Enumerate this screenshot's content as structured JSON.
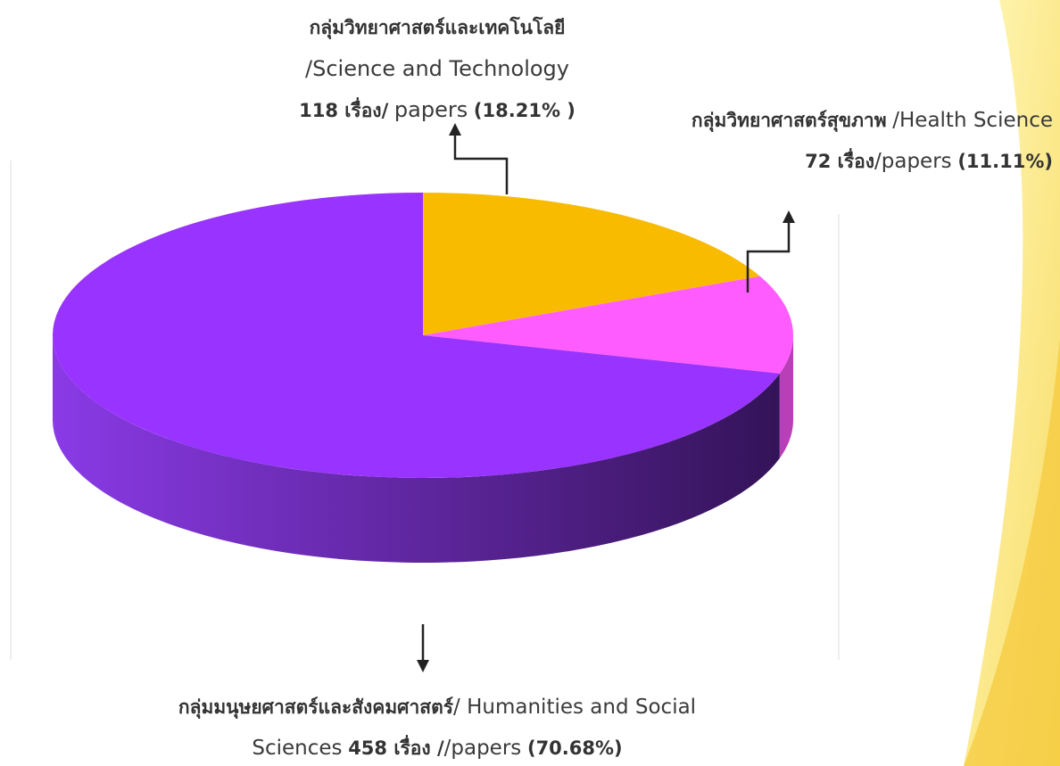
{
  "chart_data": {
    "type": "pie",
    "categories": [
      "กลุ่มวิทยาศาสตร์และเทคโนโลยี",
      "กลุ่มวิทยาศาสตร์สุขภาพ",
      "กลุ่มมนุษยศาสตร์และสังคมศาสตร์"
    ],
    "category_en": [
      "/Science and Technology",
      "/Health Science",
      "/ Humanities and Social Sciences"
    ],
    "values": [
      118,
      72,
      458
    ],
    "value_labels": [
      "118 เรื่อง/",
      "72 เรื่อง",
      "458 เรื่อง /"
    ],
    "unit_labels": [
      "papers",
      "/papers",
      "/papers"
    ],
    "percents": [
      18.21,
      11.11,
      70.68
    ],
    "percent_labels": [
      "(18.21% )",
      "(11.11%)",
      "(70.68%)"
    ],
    "colors": [
      "#f9bb00",
      "#ff5cff",
      "#9933ff"
    ]
  }
}
